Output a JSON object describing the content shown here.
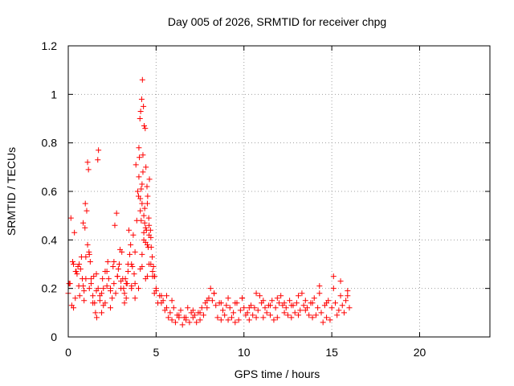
{
  "chart_data": {
    "type": "scatter",
    "title": "Day 005 of 2026, SRMTID for receiver chpg",
    "xlabel": "GPS time / hours",
    "ylabel": "SRMTID / TECUs",
    "xlim": [
      0,
      24
    ],
    "ylim": [
      0,
      1.2
    ],
    "xticks": [
      0,
      5,
      10,
      15,
      20
    ],
    "yticks": [
      0,
      0.2,
      0.4,
      0.6,
      0.8,
      1,
      1.2
    ],
    "xtick_labels": [
      "0",
      "5",
      "10",
      "15",
      "20"
    ],
    "ytick_labels": [
      "0",
      "0.2",
      "0.4",
      "0.6",
      "0.8",
      "1",
      "1.2"
    ],
    "grid": true,
    "marker": "+",
    "color": "#ff0000",
    "series": [
      {
        "name": "SRMTID",
        "x": [
          0.0,
          0.1,
          0.2,
          0.3,
          0.4,
          0.5,
          0.6,
          0.7,
          0.8,
          0.9,
          1.0,
          1.1,
          1.2,
          1.3,
          1.4,
          1.5,
          1.6,
          1.7,
          1.8,
          1.9,
          2.0,
          2.1,
          2.2,
          2.3,
          2.4,
          2.5,
          2.6,
          2.7,
          2.8,
          2.9,
          3.0,
          3.1,
          3.2,
          3.3,
          3.4,
          3.5,
          3.6,
          3.7,
          3.8,
          3.9,
          4.0,
          4.1,
          4.2,
          4.3,
          4.4,
          4.5,
          4.6,
          4.7,
          4.8,
          4.9,
          5.0,
          5.2,
          5.4,
          5.6,
          5.8,
          6.0,
          6.2,
          6.4,
          6.6,
          6.8,
          7.0,
          7.2,
          7.4,
          7.6,
          7.8,
          8.0,
          8.2,
          8.4,
          8.6,
          8.8,
          9.0,
          9.2,
          9.4,
          9.6,
          9.8,
          10.0,
          10.2,
          10.4,
          10.6,
          10.8,
          11.0,
          11.2,
          11.4,
          11.6,
          11.8,
          12.0,
          12.2,
          12.4,
          12.6,
          12.8,
          13.0,
          13.2,
          13.4,
          13.6,
          13.8,
          14.0,
          14.2,
          14.4,
          14.6,
          14.8,
          15.0,
          15.2,
          15.4,
          15.6,
          15.8,
          16.0,
          0.15,
          0.35,
          0.55,
          0.75,
          0.95,
          1.05,
          1.1,
          1.15,
          0.42,
          0.62,
          0.85,
          0.97,
          1.18,
          1.25,
          1.45,
          1.55,
          1.62,
          1.68,
          1.72,
          1.95,
          2.25,
          2.55,
          2.65,
          2.75,
          2.85,
          2.95,
          3.05,
          3.15,
          3.25,
          3.35,
          3.45,
          3.55,
          3.65,
          3.75,
          3.85,
          3.95,
          4.02,
          4.08,
          4.12,
          4.18,
          4.22,
          4.28,
          4.32,
          4.38,
          4.42,
          4.48,
          4.52,
          4.58,
          4.62,
          4.68,
          4.72,
          4.78,
          4.85,
          4.92,
          4.02,
          4.05,
          4.1,
          4.15,
          4.2,
          4.25,
          4.3,
          4.35,
          4.1,
          4.2,
          4.3,
          4.4,
          4.5,
          4.6,
          4.7,
          4.15,
          4.25,
          4.35,
          4.45,
          4.55,
          0.3,
          0.9,
          1.3,
          1.9,
          2.1,
          2.4,
          3.3,
          3.6,
          3.8,
          4.5,
          4.9,
          5.1,
          5.3,
          5.5,
          5.7,
          5.9,
          6.1,
          6.3,
          6.5,
          6.7,
          6.9,
          7.1,
          7.3,
          7.5,
          7.7,
          7.9,
          8.1,
          8.3,
          8.5,
          8.7,
          8.9,
          9.1,
          9.3,
          9.5,
          9.7,
          9.9,
          10.1,
          10.3,
          10.5,
          10.7,
          10.9,
          11.1,
          11.3,
          11.5,
          11.7,
          11.9,
          12.1,
          12.3,
          12.5,
          12.7,
          12.9,
          13.1,
          13.3,
          13.5,
          13.7,
          13.9,
          14.1,
          14.3,
          14.5,
          14.7,
          14.9,
          15.1,
          15.3,
          15.5,
          15.7,
          15.9,
          0.05,
          0.25,
          0.45,
          0.65,
          0.85,
          1.0,
          1.2,
          1.4,
          1.6,
          1.8,
          2.0,
          2.2,
          2.4,
          2.6,
          2.8,
          3.0,
          3.2,
          3.4,
          3.6,
          3.8,
          4.0,
          4.2,
          4.4,
          4.6,
          4.8,
          5.0,
          5.3,
          5.6,
          5.9,
          6.3,
          6.7,
          7.1,
          7.5,
          7.9,
          8.3,
          8.7,
          9.1,
          9.5,
          9.9,
          10.3,
          10.7,
          11.1,
          11.5,
          11.9,
          12.3,
          12.7,
          13.1,
          13.5,
          13.9,
          14.3,
          14.7,
          15.1,
          15.5,
          15.9
        ],
        "y": [
          0.18,
          0.22,
          0.13,
          0.3,
          0.16,
          0.26,
          0.21,
          0.28,
          0.24,
          0.19,
          0.33,
          0.38,
          0.34,
          0.22,
          0.17,
          0.14,
          0.19,
          0.2,
          0.15,
          0.18,
          0.2,
          0.27,
          0.21,
          0.24,
          0.19,
          0.16,
          0.22,
          0.18,
          0.25,
          0.3,
          0.2,
          0.24,
          0.18,
          0.22,
          0.27,
          0.34,
          0.3,
          0.42,
          0.35,
          0.48,
          0.58,
          0.52,
          0.55,
          0.4,
          0.45,
          0.38,
          0.42,
          0.3,
          0.27,
          0.25,
          0.2,
          0.17,
          0.15,
          0.12,
          0.1,
          0.12,
          0.09,
          0.11,
          0.08,
          0.12,
          0.1,
          0.09,
          0.1,
          0.12,
          0.14,
          0.16,
          0.15,
          0.13,
          0.14,
          0.11,
          0.13,
          0.12,
          0.1,
          0.14,
          0.11,
          0.12,
          0.1,
          0.13,
          0.12,
          0.11,
          0.14,
          0.12,
          0.13,
          0.15,
          0.12,
          0.14,
          0.13,
          0.12,
          0.15,
          0.13,
          0.14,
          0.11,
          0.13,
          0.12,
          0.14,
          0.16,
          0.12,
          0.1,
          0.13,
          0.15,
          0.12,
          0.14,
          0.11,
          0.13,
          0.15,
          0.12,
          0.49,
          0.43,
          0.29,
          0.33,
          0.45,
          0.52,
          0.72,
          0.69,
          0.27,
          0.3,
          0.47,
          0.55,
          0.35,
          0.31,
          0.25,
          0.1,
          0.08,
          0.73,
          0.77,
          0.24,
          0.31,
          0.29,
          0.46,
          0.51,
          0.28,
          0.36,
          0.35,
          0.2,
          0.24,
          0.22,
          0.44,
          0.38,
          0.29,
          0.26,
          0.71,
          0.6,
          0.78,
          0.9,
          0.93,
          0.98,
          1.06,
          0.95,
          0.87,
          0.86,
          0.7,
          0.62,
          0.58,
          0.49,
          0.65,
          0.44,
          0.37,
          0.33,
          0.29,
          0.25,
          0.66,
          0.74,
          0.57,
          0.48,
          0.63,
          0.75,
          0.5,
          0.47,
          0.28,
          0.34,
          0.43,
          0.39,
          0.55,
          0.46,
          0.41,
          0.61,
          0.68,
          0.53,
          0.44,
          0.37,
          0.12,
          0.15,
          0.24,
          0.1,
          0.14,
          0.12,
          0.16,
          0.2,
          0.22,
          0.25,
          0.18,
          0.14,
          0.17,
          0.11,
          0.08,
          0.07,
          0.06,
          0.08,
          0.05,
          0.07,
          0.06,
          0.08,
          0.06,
          0.07,
          0.09,
          0.12,
          0.2,
          0.18,
          0.08,
          0.07,
          0.09,
          0.07,
          0.08,
          0.06,
          0.07,
          0.16,
          0.09,
          0.07,
          0.09,
          0.08,
          0.17,
          0.08,
          0.1,
          0.09,
          0.07,
          0.08,
          0.17,
          0.1,
          0.09,
          0.08,
          0.1,
          0.09,
          0.18,
          0.11,
          0.09,
          0.08,
          0.09,
          0.21,
          0.06,
          0.08,
          0.07,
          0.25,
          0.09,
          0.23,
          0.1,
          0.19,
          0.22,
          0.31,
          0.27,
          0.17,
          0.21,
          0.24,
          0.2,
          0.14,
          0.26,
          0.17,
          0.13,
          0.27,
          0.2,
          0.31,
          0.25,
          0.23,
          0.14,
          0.3,
          0.21,
          0.16,
          0.2,
          0.29,
          0.24,
          0.3,
          0.25,
          0.19,
          0.14,
          0.17,
          0.15,
          0.09,
          0.08,
          0.11,
          0.1,
          0.15,
          0.18,
          0.14,
          0.16,
          0.14,
          0.16,
          0.12,
          0.18,
          0.15,
          0.13,
          0.16,
          0.14,
          0.13,
          0.17,
          0.15,
          0.14,
          0.18,
          0.14,
          0.2,
          0.17,
          0.17
        ]
      }
    ]
  }
}
